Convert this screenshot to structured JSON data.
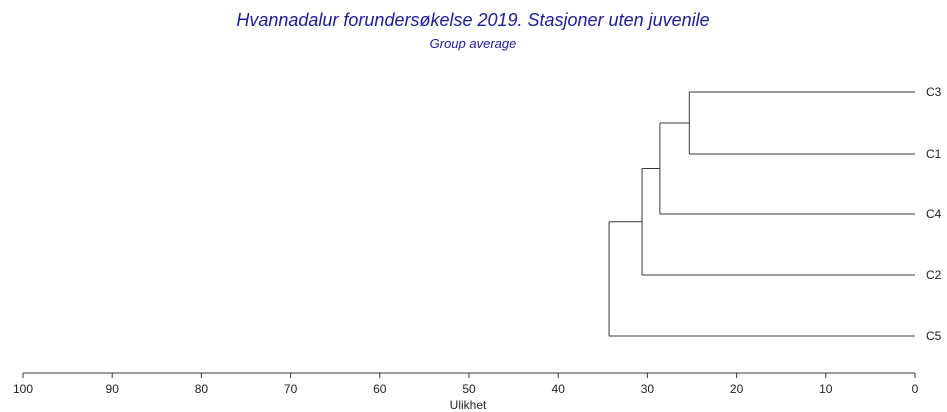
{
  "chart_data": {
    "type": "dendrogram",
    "title": "Hvannadalur forundersøkelse 2019. Stasjoner uten juvenile",
    "subtitle": "Group average",
    "xlabel": "Ulikhet",
    "xlim": [
      100,
      0
    ],
    "ticks": [
      100,
      90,
      80,
      70,
      60,
      50,
      40,
      30,
      20,
      10,
      0
    ],
    "tick_labels": [
      "100",
      "90",
      "80",
      "70",
      "60",
      "50",
      "40",
      "30",
      "20",
      "10",
      "0"
    ],
    "leaves": [
      "C3",
      "C1",
      "C4",
      "C2",
      "C5"
    ],
    "merges": [
      {
        "children": [
          "C3",
          "C1"
        ],
        "height": 25.3
      },
      {
        "children": [
          "C3+C1",
          "C4"
        ],
        "height": 28.6
      },
      {
        "children": [
          "C3+C1+C4",
          "C2"
        ],
        "height": 30.6
      },
      {
        "children": [
          "C3+C1+C4+C2",
          "C5"
        ],
        "height": 34.3
      }
    ],
    "colors": {
      "title": "#1a1aa6",
      "lines": "#3a3a3a",
      "text": "#222222"
    }
  }
}
